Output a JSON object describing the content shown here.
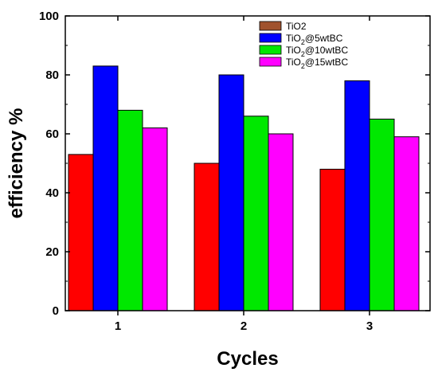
{
  "chart_data": {
    "type": "bar",
    "title": "",
    "xlabel": "Cycles",
    "ylabel": "efficiency %",
    "categories": [
      "1",
      "2",
      "3"
    ],
    "ylim": [
      0,
      100
    ],
    "yticks": [
      "0",
      "20",
      "40",
      "60",
      "80",
      "100"
    ],
    "series": [
      {
        "name": "TiO2",
        "name_main": "TiO2",
        "name_sub": "",
        "name_rest": "",
        "color": "#ff0000",
        "values": [
          53,
          50,
          48
        ]
      },
      {
        "name": "TiO2@5wtBC",
        "name_main": "TiO",
        "name_sub": "2",
        "name_rest": "@5wtBC",
        "color": "#0000ff",
        "values": [
          83,
          80,
          78
        ]
      },
      {
        "name": "TiO2@10wtBC",
        "name_main": "TiO",
        "name_sub": "2",
        "name_rest": "@10wtBC",
        "color": "#00e800",
        "values": [
          68,
          66,
          65
        ]
      },
      {
        "name": "TiO2@15wtBC",
        "name_main": "TiO",
        "name_sub": "2",
        "name_rest": "@15wtBC",
        "color": "#ff00ff",
        "values": [
          62,
          60,
          59
        ]
      }
    ],
    "legend_swatch_first": "#a0522d",
    "legend_position": "top-right",
    "grid": false
  }
}
